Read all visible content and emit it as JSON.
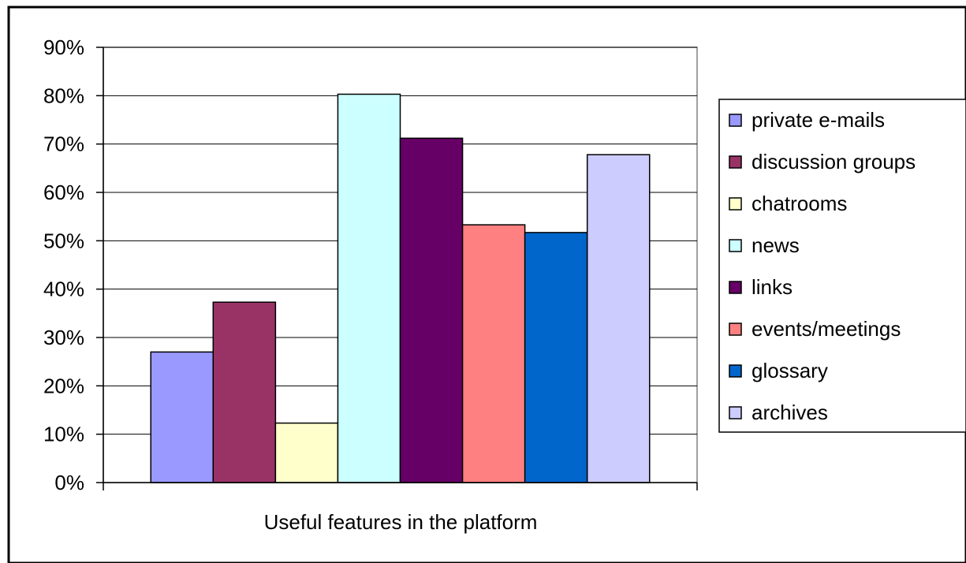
{
  "chart_data": {
    "type": "bar",
    "title": "",
    "xlabel": "Useful features in the platform",
    "ylabel": "",
    "ylim": [
      0,
      90
    ],
    "y_ticks": [
      "0%",
      "10%",
      "20%",
      "30%",
      "40%",
      "50%",
      "60%",
      "70%",
      "80%",
      "90%"
    ],
    "y_tick_values": [
      0,
      10,
      20,
      30,
      40,
      50,
      60,
      70,
      80,
      90
    ],
    "grid": true,
    "legend_position": "right",
    "categories": [
      "Useful features in the platform"
    ],
    "series": [
      {
        "name": "private e-mails",
        "values": [
          27
        ],
        "color": "#9999ff"
      },
      {
        "name": "discussion groups",
        "values": [
          37.3
        ],
        "color": "#993366"
      },
      {
        "name": "chatrooms",
        "values": [
          12.3
        ],
        "color": "#ffffcc"
      },
      {
        "name": "news",
        "values": [
          80.3
        ],
        "color": "#ccffff"
      },
      {
        "name": "links",
        "values": [
          71.2
        ],
        "color": "#660066"
      },
      {
        "name": "events/meetings",
        "values": [
          53.3
        ],
        "color": "#ff8080"
      },
      {
        "name": "glossary",
        "values": [
          51.7
        ],
        "color": "#0066cc"
      },
      {
        "name": "archives",
        "values": [
          67.8
        ],
        "color": "#ccccff"
      }
    ]
  }
}
